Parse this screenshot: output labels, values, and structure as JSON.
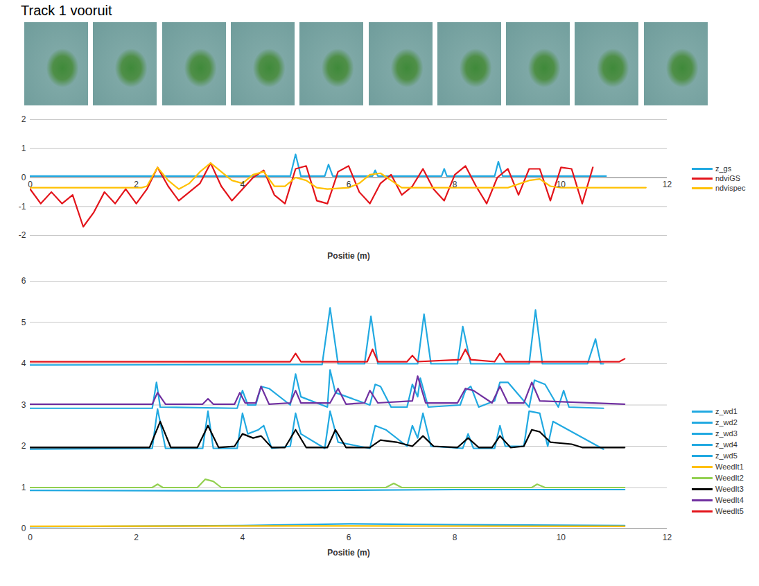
{
  "title": "Track 1 vooruit",
  "chart_data": [
    {
      "type": "line",
      "xlabel": "Positie (m)",
      "xlim": [
        0,
        12
      ],
      "xticks": [
        0,
        2,
        4,
        6,
        8,
        10,
        12
      ],
      "ylim": [
        -2,
        2
      ],
      "yticks": [
        -2,
        -1,
        0,
        1,
        2
      ],
      "grid": true,
      "legend": "right",
      "series": [
        {
          "name": "z_gs",
          "color": "#21a9e1",
          "x": [
            0,
            4.9,
            5.0,
            5.1,
            5.55,
            5.62,
            5.7,
            6.45,
            6.5,
            6.55,
            7.75,
            7.8,
            7.85,
            8.75,
            8.82,
            8.9,
            10.85
          ],
          "values": [
            0.05,
            0.05,
            0.8,
            0.05,
            0.05,
            0.45,
            0.05,
            0.05,
            0.25,
            0.05,
            0.05,
            0.3,
            0.05,
            0.05,
            0.55,
            0.05,
            0.05
          ]
        },
        {
          "name": "ndviGS",
          "color": "#e3141b",
          "x": [
            0,
            0.2,
            0.4,
            0.6,
            0.8,
            1,
            1.2,
            1.4,
            1.6,
            1.8,
            2,
            2.2,
            2.4,
            2.6,
            2.8,
            3,
            3.2,
            3.4,
            3.6,
            3.8,
            4,
            4.2,
            4.4,
            4.6,
            4.8,
            5,
            5.2,
            5.4,
            5.6,
            5.8,
            6,
            6.2,
            6.4,
            6.6,
            6.8,
            7,
            7.2,
            7.4,
            7.6,
            7.8,
            8,
            8.2,
            8.4,
            8.6,
            8.8,
            9,
            9.2,
            9.4,
            9.6,
            9.8,
            10,
            10.2,
            10.4,
            10.6
          ],
          "values": [
            -0.4,
            -0.9,
            -0.5,
            -0.9,
            -0.6,
            -1.7,
            -1.2,
            -0.5,
            -0.9,
            -0.4,
            -0.9,
            -0.4,
            0.35,
            -0.3,
            -0.8,
            -0.5,
            -0.2,
            0.5,
            -0.3,
            -0.8,
            -0.4,
            0.0,
            0.25,
            -0.6,
            -0.9,
            0.3,
            0.4,
            -0.8,
            -0.9,
            0.2,
            0.4,
            -0.5,
            -0.9,
            -0.2,
            0.1,
            -0.6,
            -0.3,
            0.3,
            -0.4,
            -0.8,
            0.1,
            0.4,
            -0.3,
            -0.9,
            0.0,
            0.3,
            -0.6,
            0.3,
            0.3,
            -0.8,
            0.35,
            0.3,
            -0.9,
            0.35
          ]
        },
        {
          "name": "ndvispec",
          "color": "#ffc000",
          "x": [
            0,
            2.1,
            2.2,
            2.4,
            2.6,
            2.8,
            3.0,
            3.2,
            3.4,
            3.6,
            3.8,
            4.0,
            4.2,
            4.4,
            4.6,
            4.8,
            5.0,
            5.2,
            5.4,
            5.6,
            6.0,
            6.2,
            6.4,
            6.6,
            6.8,
            7.0,
            9.0,
            9.4,
            9.6,
            9.8,
            10.0,
            11.6
          ],
          "values": [
            -0.35,
            -0.35,
            -0.3,
            0.35,
            -0.1,
            -0.4,
            -0.2,
            0.2,
            0.5,
            0.2,
            -0.1,
            -0.2,
            0.1,
            0.2,
            -0.3,
            -0.3,
            0.0,
            -0.1,
            -0.35,
            -0.4,
            -0.35,
            -0.2,
            0.1,
            0.15,
            -0.1,
            -0.35,
            -0.35,
            -0.1,
            -0.05,
            -0.3,
            -0.35,
            -0.35
          ]
        }
      ]
    },
    {
      "type": "line",
      "xlabel": "Positie (m)",
      "xlim": [
        0,
        12
      ],
      "xticks": [
        0,
        2,
        4,
        6,
        8,
        10,
        12
      ],
      "ylim": [
        0,
        6
      ],
      "yticks": [
        0,
        1,
        2,
        3,
        4,
        5,
        6
      ],
      "grid": true,
      "legend": "right",
      "series": [
        {
          "name": "z_wd1",
          "color": "#21a9e1",
          "x": [
            0,
            5.5,
            5.65,
            5.8,
            6.3,
            6.42,
            6.55,
            7.3,
            7.42,
            7.55,
            8.05,
            8.15,
            8.3,
            9.4,
            9.52,
            9.65,
            10.5,
            10.65,
            10.75,
            10.8
          ],
          "values": [
            3.97,
            3.98,
            5.35,
            4.0,
            4.0,
            5.15,
            4.0,
            4.0,
            5.2,
            4.0,
            4.0,
            4.9,
            4.0,
            4.0,
            5.3,
            4.0,
            4.0,
            4.6,
            4.0,
            4.0
          ]
        },
        {
          "name": "z_wd2",
          "color": "#21a9e1",
          "x": [
            0,
            2.3,
            2.38,
            2.45,
            3.9,
            4.0,
            4.1,
            4.25,
            4.35,
            4.5,
            4.9,
            5.0,
            5.1,
            5.6,
            5.65,
            5.75,
            6.4,
            6.5,
            6.6,
            6.8,
            7.1,
            7.2,
            7.3,
            7.35,
            7.5,
            8.1,
            8.2,
            8.3,
            8.45,
            8.75,
            8.85,
            9.0,
            9.4,
            9.5,
            9.7,
            9.95,
            10.05,
            10.15,
            10.8
          ],
          "values": [
            2.92,
            2.92,
            3.55,
            2.95,
            2.92,
            3.35,
            3.0,
            3.0,
            3.45,
            3.4,
            3.0,
            3.75,
            3.2,
            2.95,
            3.85,
            3.3,
            3.0,
            3.5,
            3.45,
            2.95,
            2.95,
            3.5,
            3.2,
            3.65,
            2.95,
            3.0,
            3.35,
            3.45,
            2.95,
            3.1,
            3.55,
            3.55,
            2.95,
            3.6,
            3.5,
            2.95,
            3.35,
            2.95,
            2.92
          ]
        },
        {
          "name": "z_wd3",
          "color": "#21a9e1",
          "x": [
            0,
            2.3,
            2.4,
            2.55,
            3.25,
            3.35,
            3.45,
            3.9,
            4.0,
            4.1,
            4.3,
            4.4,
            4.55,
            4.9,
            5.0,
            5.1,
            5.55,
            5.65,
            5.8,
            6.4,
            6.5,
            6.7,
            7.1,
            7.2,
            7.3,
            7.4,
            7.55,
            8.15,
            8.25,
            8.35,
            8.75,
            8.85,
            8.95,
            9.3,
            9.4,
            9.6,
            9.75,
            9.85,
            10.8
          ],
          "values": [
            1.93,
            1.95,
            2.9,
            1.95,
            1.95,
            2.85,
            1.95,
            1.95,
            2.8,
            2.3,
            2.4,
            2.5,
            1.95,
            2.0,
            2.8,
            2.3,
            1.95,
            2.85,
            2.1,
            1.95,
            2.5,
            2.4,
            2.0,
            2.5,
            2.2,
            2.8,
            2.0,
            1.95,
            2.3,
            1.95,
            1.95,
            2.5,
            2.0,
            2.0,
            2.85,
            2.8,
            2.0,
            2.6,
            1.93
          ]
        },
        {
          "name": "z_wd4",
          "color": "#21a9e1",
          "x": [
            0,
            4,
            8,
            11.2
          ],
          "values": [
            0.93,
            0.92,
            0.95,
            0.95
          ]
        },
        {
          "name": "z_wd5",
          "color": "#21a9e1",
          "x": [
            0,
            4,
            6,
            8,
            11.2
          ],
          "values": [
            0.05,
            0.08,
            0.12,
            0.1,
            0.08
          ]
        },
        {
          "name": "WeedIt1",
          "color": "#ffc000",
          "x": [
            0,
            5,
            11.2
          ],
          "values": [
            0.06,
            0.07,
            0.06
          ]
        },
        {
          "name": "WeedIt2",
          "color": "#92d050",
          "x": [
            0,
            2.3,
            2.4,
            2.5,
            3.15,
            3.3,
            3.45,
            3.6,
            6.7,
            6.85,
            7.0,
            9.45,
            9.55,
            9.7,
            11.2
          ],
          "values": [
            1.0,
            1.0,
            1.08,
            1.0,
            1.0,
            1.2,
            1.15,
            1.0,
            1.0,
            1.1,
            1.0,
            1.0,
            1.08,
            1.0,
            1.0
          ]
        },
        {
          "name": "WeedIt3",
          "color": "#000000",
          "x": [
            0,
            2.25,
            2.45,
            2.65,
            3.15,
            3.35,
            3.55,
            3.85,
            4.0,
            4.2,
            4.35,
            4.55,
            4.8,
            5.0,
            5.2,
            5.6,
            5.75,
            5.95,
            6.4,
            6.6,
            6.9,
            7.2,
            7.4,
            7.6,
            8.05,
            8.25,
            8.45,
            8.7,
            8.85,
            9.05,
            9.3,
            9.45,
            9.6,
            9.8,
            10.2,
            10.4,
            11.2
          ],
          "values": [
            1.97,
            1.97,
            2.6,
            1.97,
            1.97,
            2.5,
            1.97,
            2.0,
            2.3,
            2.2,
            2.25,
            1.97,
            1.97,
            2.4,
            1.97,
            1.97,
            2.4,
            1.97,
            1.97,
            2.15,
            2.1,
            2.0,
            2.25,
            2.0,
            1.97,
            2.2,
            1.97,
            1.97,
            2.25,
            1.97,
            2.0,
            2.4,
            2.35,
            2.1,
            2.05,
            1.97,
            1.97
          ]
        },
        {
          "name": "WeedIt4",
          "color": "#7030a0",
          "x": [
            0,
            2.3,
            2.4,
            2.55,
            3.25,
            3.35,
            3.45,
            3.85,
            3.95,
            4.05,
            4.25,
            4.35,
            4.5,
            4.9,
            5.0,
            5.1,
            5.65,
            5.8,
            5.95,
            6.3,
            6.4,
            6.55,
            7.2,
            7.3,
            7.45,
            8.05,
            8.2,
            8.35,
            8.7,
            8.85,
            9.0,
            9.3,
            9.45,
            9.6,
            11.2
          ],
          "values": [
            3.02,
            3.02,
            3.3,
            3.02,
            3.02,
            3.15,
            3.02,
            3.02,
            3.3,
            3.05,
            3.05,
            3.45,
            3.02,
            3.05,
            3.35,
            3.05,
            3.05,
            3.4,
            3.02,
            3.05,
            3.35,
            3.05,
            3.1,
            3.7,
            3.05,
            3.05,
            3.4,
            3.35,
            3.05,
            3.45,
            3.05,
            3.05,
            3.55,
            3.1,
            3.02
          ]
        },
        {
          "name": "WeedIt5",
          "color": "#e3141b",
          "x": [
            0,
            4.9,
            5.0,
            5.1,
            6.35,
            6.45,
            6.55,
            7.1,
            7.2,
            7.3,
            8.1,
            8.2,
            8.3,
            8.75,
            8.85,
            8.95,
            11.1,
            11.2
          ],
          "values": [
            4.05,
            4.05,
            4.25,
            4.05,
            4.05,
            4.35,
            4.05,
            4.05,
            4.2,
            4.05,
            4.1,
            4.35,
            4.1,
            4.05,
            4.25,
            4.05,
            4.05,
            4.12
          ]
        }
      ]
    }
  ]
}
